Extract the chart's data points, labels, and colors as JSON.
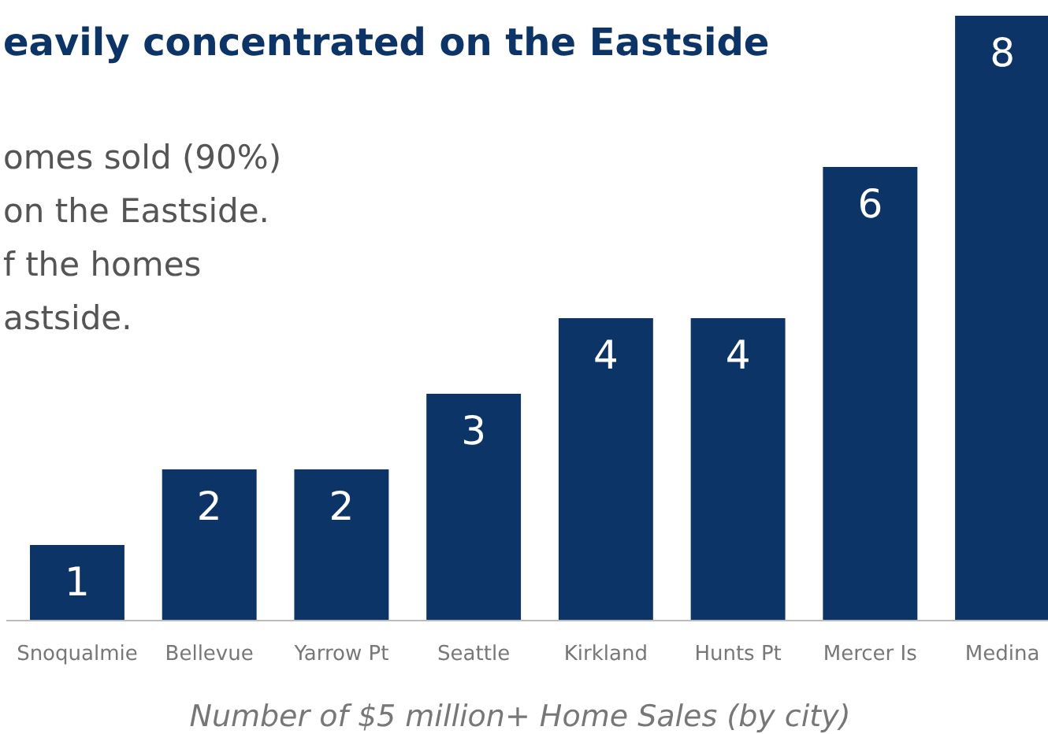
{
  "chart_data": {
    "type": "bar",
    "title": "eavily concentrated on the Eastside",
    "annotations": [
      "omes sold (90%)",
      "on the Eastside.",
      "f the homes",
      "astside."
    ],
    "xlabel": "Number of $5 million+ Home Sales (by city)",
    "categories": [
      "Snoqualmie",
      "Bellevue",
      "Yarrow Pt",
      "Seattle",
      "Kirkland",
      "Hunts Pt",
      "Mercer Is",
      "Medina"
    ],
    "values": [
      1,
      2,
      2,
      3,
      4,
      4,
      6,
      8
    ],
    "color": "#0c3466",
    "data_labels": true
  }
}
